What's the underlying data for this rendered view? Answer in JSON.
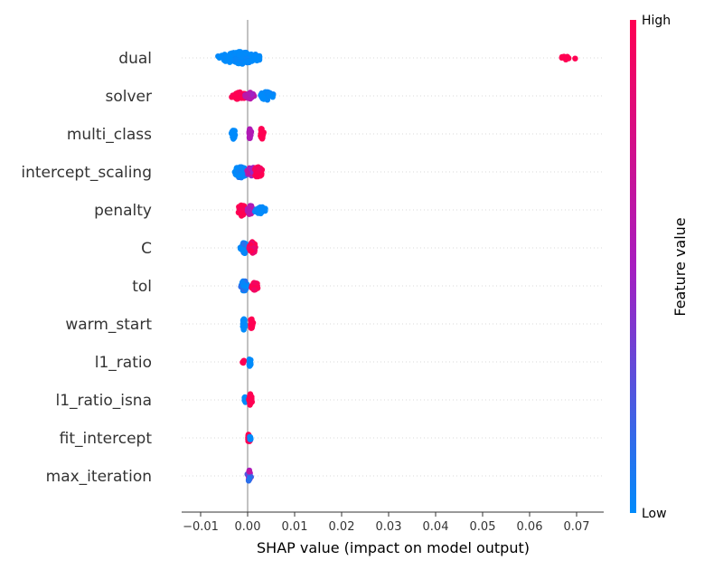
{
  "chart_data": {
    "type": "scatter",
    "subtype": "shap-beeswarm-summary",
    "xlabel": "SHAP value (impact on model output)",
    "xlim": [
      -0.0135,
      0.075
    ],
    "x_ticks": [
      -0.01,
      0.0,
      0.01,
      0.02,
      0.03,
      0.04,
      0.05,
      0.06,
      0.07
    ],
    "x_tick_labels": [
      "−0.01",
      "0.00",
      "0.01",
      "0.02",
      "0.03",
      "0.04",
      "0.05",
      "0.06",
      "0.07"
    ],
    "colorbar": {
      "title": "Feature value",
      "high_label": "High",
      "low_label": "Low",
      "low_color": "#008bfb",
      "high_color": "#ff0052"
    },
    "grid": "dotted horizontal row lines",
    "features": [
      {
        "name": "dual",
        "clusters": [
          {
            "x_min": -0.01,
            "x_max": 0.0025,
            "center": -0.0015,
            "count": 170,
            "spread": 7,
            "value": 0.0,
            "vj": 0.03
          },
          {
            "x_min": 0.0665,
            "x_max": 0.0715,
            "center": 0.068,
            "count": 14,
            "spread": 2,
            "value": 1.0,
            "vj": 0.0
          }
        ]
      },
      {
        "name": "solver",
        "clusters": [
          {
            "x_min": -0.005,
            "x_max": -0.0005,
            "center": -0.0018,
            "count": 40,
            "spread": 5,
            "value": 1.0,
            "vj": 0.05
          },
          {
            "x_min": -0.0005,
            "x_max": 0.0018,
            "center": 0.0005,
            "count": 25,
            "spread": 4,
            "value": 0.55,
            "vj": 0.08
          },
          {
            "x_min": 0.0012,
            "x_max": 0.0055,
            "center": 0.004,
            "count": 28,
            "spread": 5,
            "value": 0.0,
            "vj": 0.05
          }
        ]
      },
      {
        "name": "multi_class",
        "clusters": [
          {
            "x_min": -0.0035,
            "x_max": -0.0025,
            "center": -0.003,
            "count": 24,
            "spread": 6,
            "value": 0.0,
            "vj": 0.0
          },
          {
            "x_min": 0.0,
            "x_max": 0.001,
            "center": 0.0005,
            "count": 24,
            "spread": 6,
            "value": 0.55,
            "vj": 0.0
          },
          {
            "x_min": 0.0025,
            "x_max": 0.0035,
            "center": 0.003,
            "count": 28,
            "spread": 7,
            "value": 1.0,
            "vj": 0.0
          }
        ]
      },
      {
        "name": "intercept_scaling",
        "clusters": [
          {
            "x_min": -0.0035,
            "x_max": 0.0005,
            "center": -0.0015,
            "count": 45,
            "spread": 7,
            "value": 0.0,
            "vj": 0.1
          },
          {
            "x_min": -0.0005,
            "x_max": 0.002,
            "center": 0.0008,
            "count": 30,
            "spread": 7,
            "value": 0.55,
            "vj": 0.1
          },
          {
            "x_min": 0.0008,
            "x_max": 0.0035,
            "center": 0.0022,
            "count": 40,
            "spread": 7,
            "value": 1.0,
            "vj": 0.1
          }
        ]
      },
      {
        "name": "penalty",
        "clusters": [
          {
            "x_min": -0.0025,
            "x_max": 0.0002,
            "center": -0.0012,
            "count": 40,
            "spread": 7,
            "value": 1.0,
            "vj": 0.05
          },
          {
            "x_min": -0.0002,
            "x_max": 0.0018,
            "center": 0.0005,
            "count": 25,
            "spread": 6,
            "value": 0.55,
            "vj": 0.08
          },
          {
            "x_min": 0.001,
            "x_max": 0.004,
            "center": 0.0025,
            "count": 20,
            "spread": 5,
            "value": 0.0,
            "vj": 0.05
          }
        ]
      },
      {
        "name": "C",
        "clusters": [
          {
            "x_min": -0.0018,
            "x_max": 0.0002,
            "center": -0.0008,
            "count": 35,
            "spread": 7,
            "value": 0.0,
            "vj": 0.15
          },
          {
            "x_min": 0.0,
            "x_max": 0.0022,
            "center": 0.001,
            "count": 35,
            "spread": 7,
            "value": 1.0,
            "vj": 0.15
          }
        ]
      },
      {
        "name": "tol",
        "clusters": [
          {
            "x_min": -0.0018,
            "x_max": 0.0003,
            "center": -0.0007,
            "count": 35,
            "spread": 7,
            "value": 0.0,
            "vj": 0.15
          },
          {
            "x_min": 0.0003,
            "x_max": 0.0025,
            "center": 0.0015,
            "count": 25,
            "spread": 5,
            "value": 1.0,
            "vj": 0.1
          }
        ]
      },
      {
        "name": "warm_start",
        "clusters": [
          {
            "x_min": -0.0012,
            "x_max": -0.0005,
            "center": -0.0008,
            "count": 24,
            "spread": 7,
            "value": 0.0,
            "vj": 0.0
          },
          {
            "x_min": 0.0003,
            "x_max": 0.0012,
            "center": 0.0008,
            "count": 28,
            "spread": 7,
            "value": 1.0,
            "vj": 0.0
          }
        ]
      },
      {
        "name": "l1_ratio",
        "clusters": [
          {
            "x_min": -0.0012,
            "x_max": -0.0004,
            "center": -0.0008,
            "count": 6,
            "spread": 2,
            "value": 1.0,
            "vj": 0.0
          },
          {
            "x_min": 0.0002,
            "x_max": 0.0008,
            "center": 0.0005,
            "count": 18,
            "spread": 6,
            "value": 0.0,
            "vj": 0.0
          }
        ]
      },
      {
        "name": "l1_ratio_isna",
        "clusters": [
          {
            "x_min": -0.0008,
            "x_max": -0.0002,
            "center": -0.0005,
            "count": 14,
            "spread": 5,
            "value": 0.0,
            "vj": 0.0
          },
          {
            "x_min": 0.0002,
            "x_max": 0.001,
            "center": 0.0006,
            "count": 22,
            "spread": 7,
            "value": 1.0,
            "vj": 0.0
          }
        ]
      },
      {
        "name": "fit_intercept",
        "clusters": [
          {
            "x_min": 0.0,
            "x_max": 0.0008,
            "center": 0.0003,
            "count": 20,
            "spread": 6,
            "value": 1.0,
            "vj": 0.0
          },
          {
            "x_min": 0.0004,
            "x_max": 0.0008,
            "center": 0.0006,
            "count": 6,
            "spread": 3,
            "value": 0.0,
            "vj": 0.0
          }
        ]
      },
      {
        "name": "max_iteration",
        "clusters": [
          {
            "x_min": -0.0002,
            "x_max": 0.0008,
            "center": 0.0003,
            "count": 22,
            "spread": 7,
            "value": 0.4,
            "vj": 0.3
          }
        ]
      }
    ]
  }
}
